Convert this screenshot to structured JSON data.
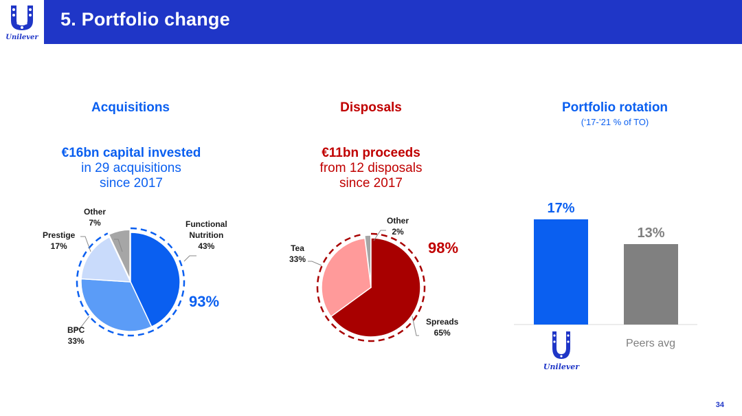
{
  "header": {
    "title": "5. Portfolio change"
  },
  "logo": {
    "brand": "Unilever"
  },
  "page_number": "34",
  "colors": {
    "header_blue": "#1f36c7",
    "acq_blue": "#0a5ff0",
    "disp_red": "#c00000"
  },
  "chart_data": [
    {
      "type": "pie",
      "title": "Acquisitions",
      "headline_bold": "€16bn capital invested",
      "headline_line2": "in 29 acquisitions",
      "headline_line3": "since 2017",
      "highlight": "93%",
      "slices": [
        {
          "name": "Functional Nutrition",
          "label1": "Functional",
          "label2": "Nutrition",
          "pct_label": "43%",
          "value": 43,
          "color": "#0a5ff0"
        },
        {
          "name": "BPC",
          "label1": "BPC",
          "pct_label": "33%",
          "value": 33,
          "color": "#5b9cf7"
        },
        {
          "name": "Prestige",
          "label1": "Prestige",
          "pct_label": "17%",
          "value": 17,
          "color": "#c9dbfb"
        },
        {
          "name": "Other",
          "label1": "Other",
          "pct_label": "7%",
          "value": 7,
          "color": "#a6a6a6"
        }
      ]
    },
    {
      "type": "pie",
      "title": "Disposals",
      "headline_bold": "€11bn proceeds",
      "headline_line2": "from 12 disposals",
      "headline_line3": "since 2017",
      "highlight": "98%",
      "slices": [
        {
          "name": "Spreads",
          "label1": "Spreads",
          "pct_label": "65%",
          "value": 65,
          "color": "#a80000"
        },
        {
          "name": "Tea",
          "label1": "Tea",
          "pct_label": "33%",
          "value": 33,
          "color": "#ff9a9a"
        },
        {
          "name": "Other",
          "label1": "Other",
          "pct_label": "2%",
          "value": 2,
          "color": "#a6a6a6"
        }
      ]
    },
    {
      "type": "bar",
      "title": "Portfolio rotation",
      "subtitle": "(‘17-’21 % of TO)",
      "categories": [
        "Unilever",
        "Peers avg"
      ],
      "values": [
        17,
        13
      ],
      "value_labels": [
        "17%",
        "13%"
      ],
      "colors": [
        "#0a5ff0",
        "#808080"
      ],
      "ylim": [
        0,
        20
      ]
    }
  ]
}
